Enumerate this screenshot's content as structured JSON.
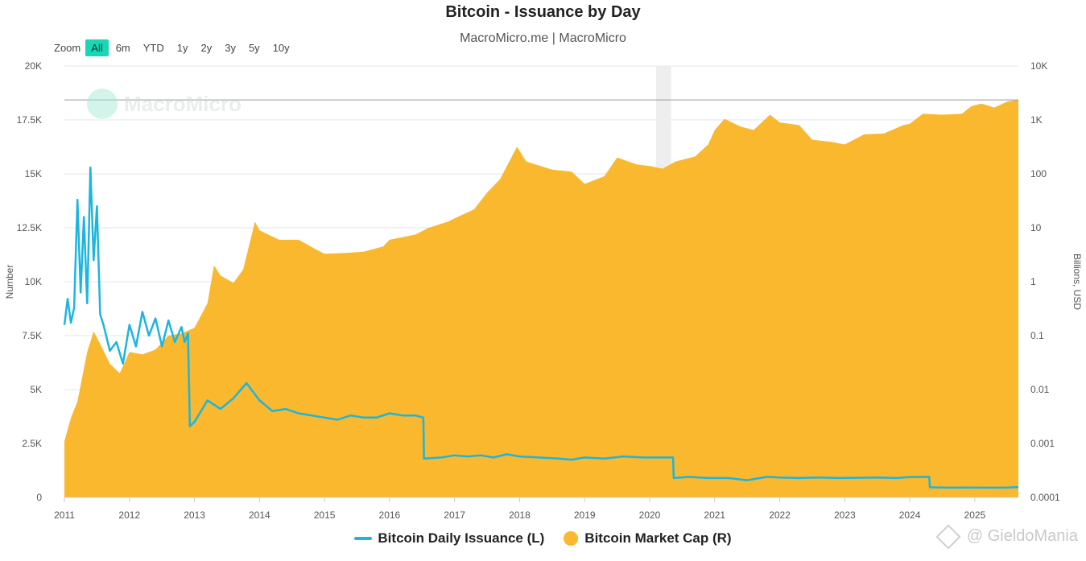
{
  "title": "Bitcoin - Issuance by Day",
  "subtitle": "MacroMicro.me | MacroMicro",
  "zoom": {
    "label": "Zoom",
    "options": [
      "All",
      "6m",
      "YTD",
      "1y",
      "2y",
      "3y",
      "5y",
      "10y"
    ],
    "active": "All"
  },
  "logo_watermark": "MacroMicro",
  "corner_watermark": "@ GieldoMania",
  "colors": {
    "issuance": "#1cb5e0",
    "market_cap": "#f9b82e",
    "zoom_active": "#1ad6b4"
  },
  "chart_data": {
    "type": "line+area",
    "x_axis": {
      "start_year": 2011,
      "end_year": 2025.67,
      "tick_labels": [
        "2011",
        "2012",
        "2013",
        "2014",
        "2015",
        "2016",
        "2017",
        "2018",
        "2019",
        "2020",
        "2021",
        "2022",
        "2023",
        "2024",
        "2025"
      ]
    },
    "y_left": {
      "label": "Number",
      "range": [
        0,
        20000
      ],
      "tick_values": [
        0,
        2500,
        5000,
        7500,
        10000,
        12500,
        15000,
        17500,
        20000
      ],
      "tick_labels": [
        "0",
        "2.5K",
        "5K",
        "7.5K",
        "10K",
        "12.5K",
        "15K",
        "17.5K",
        "20K"
      ]
    },
    "y_right": {
      "label": "Billions, USD",
      "scale": "log",
      "range": [
        0.0001,
        10000
      ],
      "tick_values": [
        0.0001,
        0.001,
        0.01,
        0.1,
        1,
        10,
        100,
        1000,
        10000
      ],
      "tick_labels": [
        "0.0001",
        "0.001",
        "0.01",
        "0.1",
        "1",
        "10",
        "100",
        "1K",
        "10K"
      ]
    },
    "grid": true,
    "legend_position": "bottom-center",
    "series": [
      {
        "name": "Bitcoin Daily Issuance (L)",
        "type": "line",
        "axis": "left",
        "points": [
          [
            2011.0,
            8000
          ],
          [
            2011.05,
            9200
          ],
          [
            2011.1,
            8100
          ],
          [
            2011.15,
            8800
          ],
          [
            2011.2,
            13800
          ],
          [
            2011.25,
            9500
          ],
          [
            2011.3,
            13000
          ],
          [
            2011.35,
            9000
          ],
          [
            2011.4,
            15300
          ],
          [
            2011.45,
            11000
          ],
          [
            2011.5,
            13500
          ],
          [
            2011.55,
            8500
          ],
          [
            2011.6,
            8000
          ],
          [
            2011.7,
            6800
          ],
          [
            2011.8,
            7200
          ],
          [
            2011.9,
            6200
          ],
          [
            2012.0,
            8000
          ],
          [
            2012.1,
            7000
          ],
          [
            2012.2,
            8600
          ],
          [
            2012.3,
            7500
          ],
          [
            2012.4,
            8300
          ],
          [
            2012.5,
            7000
          ],
          [
            2012.6,
            8200
          ],
          [
            2012.7,
            7200
          ],
          [
            2012.8,
            7900
          ],
          [
            2012.85,
            7200
          ],
          [
            2012.9,
            7600
          ],
          [
            2012.93,
            3300
          ],
          [
            2013.0,
            3500
          ],
          [
            2013.2,
            4500
          ],
          [
            2013.4,
            4100
          ],
          [
            2013.6,
            4600
          ],
          [
            2013.8,
            5300
          ],
          [
            2014.0,
            4500
          ],
          [
            2014.2,
            4000
          ],
          [
            2014.4,
            4100
          ],
          [
            2014.6,
            3900
          ],
          [
            2014.8,
            3800
          ],
          [
            2015.0,
            3700
          ],
          [
            2015.2,
            3600
          ],
          [
            2015.4,
            3800
          ],
          [
            2015.6,
            3700
          ],
          [
            2015.8,
            3700
          ],
          [
            2016.0,
            3900
          ],
          [
            2016.2,
            3800
          ],
          [
            2016.4,
            3800
          ],
          [
            2016.52,
            3700
          ],
          [
            2016.53,
            1800
          ],
          [
            2016.8,
            1850
          ],
          [
            2017.0,
            1950
          ],
          [
            2017.2,
            1900
          ],
          [
            2017.4,
            1950
          ],
          [
            2017.6,
            1850
          ],
          [
            2017.8,
            2000
          ],
          [
            2018.0,
            1900
          ],
          [
            2018.3,
            1850
          ],
          [
            2018.6,
            1800
          ],
          [
            2018.8,
            1750
          ],
          [
            2019.0,
            1850
          ],
          [
            2019.3,
            1800
          ],
          [
            2019.6,
            1900
          ],
          [
            2019.9,
            1850
          ],
          [
            2020.2,
            1850
          ],
          [
            2020.36,
            1850
          ],
          [
            2020.37,
            900
          ],
          [
            2020.6,
            950
          ],
          [
            2020.9,
            900
          ],
          [
            2021.2,
            900
          ],
          [
            2021.5,
            800
          ],
          [
            2021.8,
            950
          ],
          [
            2022.0,
            920
          ],
          [
            2022.3,
            900
          ],
          [
            2022.6,
            920
          ],
          [
            2022.9,
            900
          ],
          [
            2023.2,
            910
          ],
          [
            2023.5,
            920
          ],
          [
            2023.8,
            900
          ],
          [
            2024.0,
            940
          ],
          [
            2024.3,
            950
          ],
          [
            2024.31,
            470
          ],
          [
            2024.6,
            450
          ],
          [
            2024.9,
            460
          ],
          [
            2025.2,
            450
          ],
          [
            2025.5,
            460
          ],
          [
            2025.67,
            480
          ]
        ]
      },
      {
        "name": "Bitcoin Market Cap (R)",
        "type": "area",
        "axis": "right",
        "points": [
          [
            2011.0,
            0.0011
          ],
          [
            2011.1,
            0.003
          ],
          [
            2011.2,
            0.006
          ],
          [
            2011.35,
            0.05
          ],
          [
            2011.45,
            0.12
          ],
          [
            2011.55,
            0.07
          ],
          [
            2011.7,
            0.03
          ],
          [
            2011.85,
            0.02
          ],
          [
            2012.0,
            0.05
          ],
          [
            2012.2,
            0.045
          ],
          [
            2012.4,
            0.055
          ],
          [
            2012.6,
            0.1
          ],
          [
            2012.8,
            0.11
          ],
          [
            2013.0,
            0.14
          ],
          [
            2013.2,
            0.4
          ],
          [
            2013.3,
            2.0
          ],
          [
            2013.4,
            1.3
          ],
          [
            2013.6,
            0.95
          ],
          [
            2013.75,
            1.7
          ],
          [
            2013.93,
            13
          ],
          [
            2014.0,
            9
          ],
          [
            2014.3,
            6
          ],
          [
            2014.6,
            6
          ],
          [
            2014.9,
            3.8
          ],
          [
            2015.0,
            3.3
          ],
          [
            2015.3,
            3.4
          ],
          [
            2015.6,
            3.6
          ],
          [
            2015.9,
            4.5
          ],
          [
            2016.0,
            6
          ],
          [
            2016.4,
            7.5
          ],
          [
            2016.6,
            10
          ],
          [
            2016.9,
            13
          ],
          [
            2017.0,
            15
          ],
          [
            2017.3,
            22
          ],
          [
            2017.5,
            45
          ],
          [
            2017.7,
            80
          ],
          [
            2017.96,
            320
          ],
          [
            2018.1,
            170
          ],
          [
            2018.5,
            120
          ],
          [
            2018.8,
            110
          ],
          [
            2019.0,
            65
          ],
          [
            2019.3,
            90
          ],
          [
            2019.5,
            200
          ],
          [
            2019.8,
            150
          ],
          [
            2020.0,
            140
          ],
          [
            2020.2,
            125
          ],
          [
            2020.4,
            170
          ],
          [
            2020.7,
            210
          ],
          [
            2020.9,
            350
          ],
          [
            2021.0,
            650
          ],
          [
            2021.15,
            1050
          ],
          [
            2021.4,
            750
          ],
          [
            2021.6,
            650
          ],
          [
            2021.85,
            1250
          ],
          [
            2022.0,
            900
          ],
          [
            2022.3,
            800
          ],
          [
            2022.5,
            430
          ],
          [
            2022.8,
            390
          ],
          [
            2023.0,
            350
          ],
          [
            2023.3,
            540
          ],
          [
            2023.6,
            560
          ],
          [
            2023.9,
            800
          ],
          [
            2024.0,
            850
          ],
          [
            2024.2,
            1300
          ],
          [
            2024.5,
            1250
          ],
          [
            2024.8,
            1300
          ],
          [
            2024.95,
            1800
          ],
          [
            2025.1,
            2000
          ],
          [
            2025.3,
            1700
          ],
          [
            2025.5,
            2200
          ],
          [
            2025.67,
            2350
          ]
        ]
      }
    ]
  }
}
